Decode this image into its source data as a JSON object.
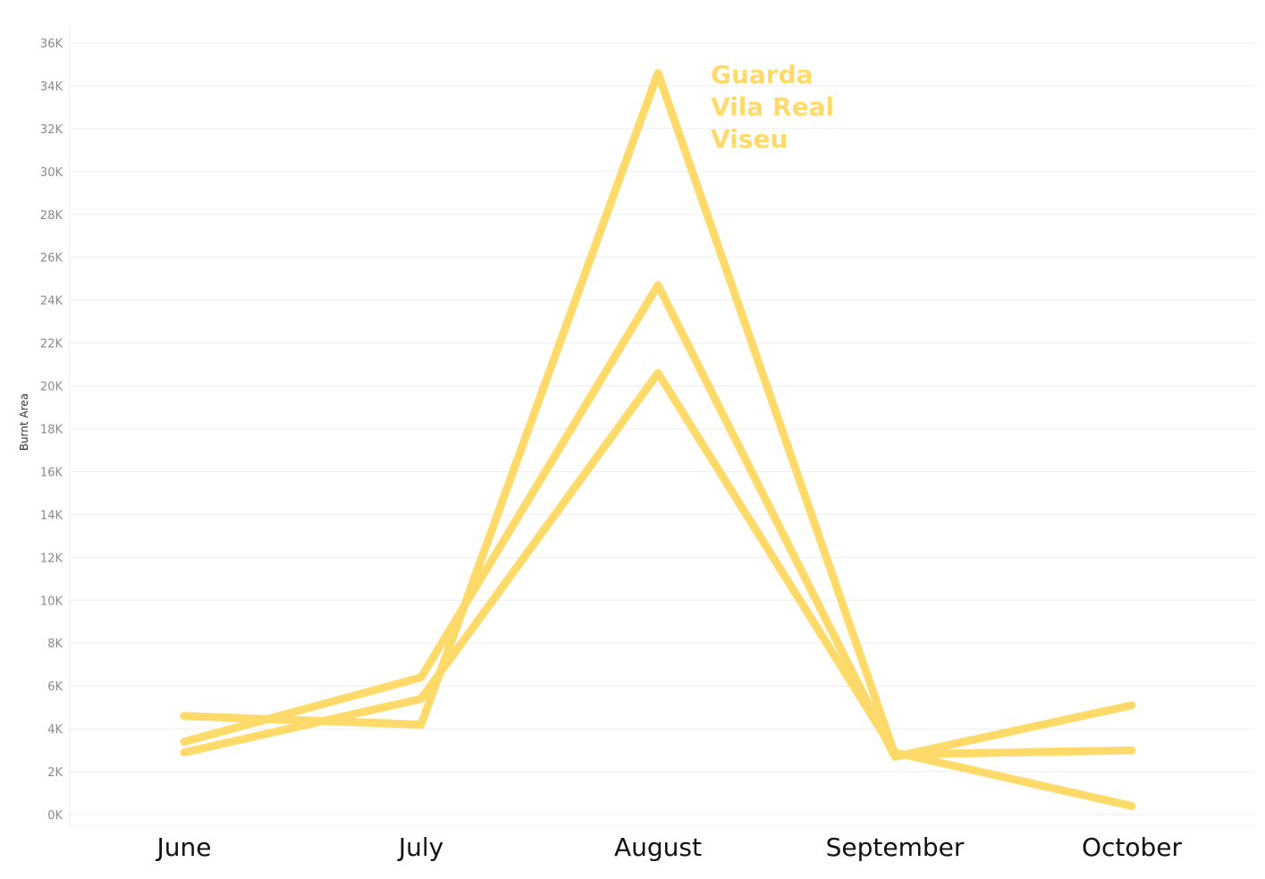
{
  "chart_data": {
    "type": "line",
    "title": "",
    "xlabel": "",
    "ylabel": "Burnt Area",
    "categories": [
      "June",
      "July",
      "August",
      "September",
      "October"
    ],
    "ylim": [
      0,
      36000
    ],
    "yticks": [
      0,
      2000,
      4000,
      6000,
      8000,
      10000,
      12000,
      14000,
      16000,
      18000,
      20000,
      22000,
      24000,
      26000,
      28000,
      30000,
      32000,
      34000,
      36000
    ],
    "ytick_labels": [
      "0K",
      "2K",
      "4K",
      "6K",
      "8K",
      "10K",
      "12K",
      "14K",
      "16K",
      "18K",
      "20K",
      "22K",
      "24K",
      "26K",
      "28K",
      "30K",
      "32K",
      "34K",
      "36K"
    ],
    "grid": true,
    "legend_position": "top-right",
    "legend_entries": [
      "Guarda",
      "Vila Real",
      "Viseu"
    ],
    "series": [
      {
        "name": "Guarda",
        "values": [
          4600,
          4200,
          34600,
          2800,
          3000
        ]
      },
      {
        "name": "Vila Real",
        "values": [
          3400,
          6400,
          24700,
          2700,
          5100
        ]
      },
      {
        "name": "Viseu",
        "values": [
          2900,
          5400,
          20600,
          2900,
          400
        ]
      }
    ],
    "line_color": "#FDDA6A"
  }
}
